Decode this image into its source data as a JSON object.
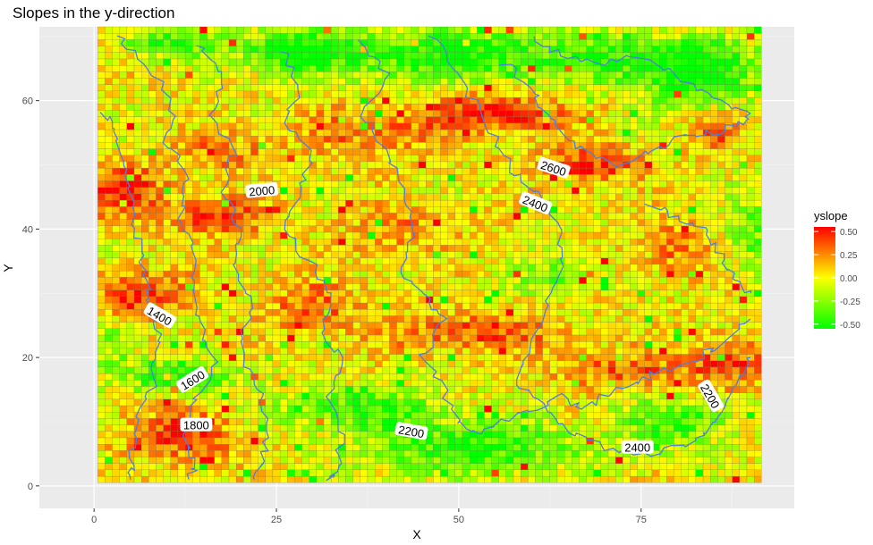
{
  "chart_data": {
    "type": "heatmap",
    "title": "Slopes in the y-direction",
    "xlabel": "X",
    "ylabel": "Y",
    "xlim": [
      -7.5,
      96
    ],
    "ylim": [
      -3.5,
      71.5
    ],
    "x_ticks": [
      0,
      25,
      50,
      75
    ],
    "x_tick_labels": [
      "0",
      "25",
      "50",
      "75"
    ],
    "y_ticks": [
      0,
      20,
      40,
      60
    ],
    "y_tick_labels": [
      "0",
      "20",
      "40",
      "60"
    ],
    "grid": true,
    "grid_extent": {
      "x": [
        1,
        91
      ],
      "y": [
        1,
        71
      ]
    },
    "legend": {
      "title": "yslope",
      "position": "right",
      "range": [
        -0.55,
        0.55
      ],
      "breaks": [
        0.5,
        0.25,
        0.0,
        -0.25,
        -0.5
      ],
      "break_labels": [
        "0.50",
        "0.25",
        "0.00",
        "-0.25",
        "-0.50"
      ],
      "colors": [
        "#00ff00",
        "#ffff00",
        "#ff0000"
      ]
    },
    "contour_color": "#4c7fe0",
    "contour_labels": [
      {
        "text": "2000",
        "x": 23,
        "y": 46,
        "angle": -5
      },
      {
        "text": "2600",
        "x": 63,
        "y": 49.5,
        "angle": 18
      },
      {
        "text": "2400",
        "x": 60.5,
        "y": 44,
        "angle": 22
      },
      {
        "text": "1400",
        "x": 9,
        "y": 26.5,
        "angle": 30
      },
      {
        "text": "1600",
        "x": 13.5,
        "y": 16.5,
        "angle": -32
      },
      {
        "text": "1800",
        "x": 14,
        "y": 9.5,
        "angle": 0
      },
      {
        "text": "2200",
        "x": 43.5,
        "y": 8.5,
        "angle": 10
      },
      {
        "text": "2400",
        "x": 74.5,
        "y": 6,
        "angle": 0
      },
      {
        "text": "2200",
        "x": 84.5,
        "y": 14,
        "angle": 60
      }
    ],
    "regions": [
      {
        "v": 0.52,
        "x": 4,
        "y": 46,
        "rx": 6,
        "ry": 4
      },
      {
        "v": 0.5,
        "x": 17,
        "y": 42,
        "rx": 6,
        "ry": 3
      },
      {
        "v": 0.5,
        "x": 6,
        "y": 30,
        "rx": 6,
        "ry": 3.5
      },
      {
        "v": 0.45,
        "x": 12,
        "y": 8,
        "rx": 8,
        "ry": 4
      },
      {
        "v": 0.5,
        "x": 55,
        "y": 58,
        "rx": 10,
        "ry": 3
      },
      {
        "v": 0.45,
        "x": 68,
        "y": 50,
        "rx": 7,
        "ry": 3
      },
      {
        "v": 0.45,
        "x": 87,
        "y": 19,
        "rx": 5,
        "ry": 4
      },
      {
        "v": 0.4,
        "x": 52,
        "y": 24,
        "rx": 12,
        "ry": 3
      },
      {
        "v": 0.35,
        "x": 30,
        "y": 28,
        "rx": 6,
        "ry": 4
      },
      {
        "v": 0.35,
        "x": 72,
        "y": 18,
        "rx": 10,
        "ry": 3
      },
      {
        "v": 0.3,
        "x": 38,
        "y": 55,
        "rx": 10,
        "ry": 4
      },
      {
        "v": 0.3,
        "x": 18,
        "y": 52,
        "rx": 6,
        "ry": 3
      },
      {
        "v": 0.3,
        "x": 80,
        "y": 37,
        "rx": 5,
        "ry": 4
      },
      {
        "v": 0.3,
        "x": 85,
        "y": 55,
        "rx": 4,
        "ry": 3
      },
      {
        "v": 0.25,
        "x": 42,
        "y": 40,
        "rx": 8,
        "ry": 4
      },
      {
        "v": -0.55,
        "x": 50,
        "y": 67,
        "rx": 20,
        "ry": 4
      },
      {
        "v": -0.5,
        "x": 80,
        "y": 66,
        "rx": 12,
        "ry": 4
      },
      {
        "v": -0.5,
        "x": 27,
        "y": 68,
        "rx": 8,
        "ry": 3
      },
      {
        "v": -0.5,
        "x": 10,
        "y": 69,
        "rx": 6,
        "ry": 2
      },
      {
        "v": -0.5,
        "x": 52,
        "y": 6,
        "rx": 16,
        "ry": 4
      },
      {
        "v": -0.45,
        "x": 36,
        "y": 12,
        "rx": 12,
        "ry": 3
      },
      {
        "v": -0.5,
        "x": 12,
        "y": 17,
        "rx": 8,
        "ry": 2.5
      },
      {
        "v": -0.4,
        "x": 80,
        "y": 10,
        "rx": 8,
        "ry": 4
      },
      {
        "v": -0.35,
        "x": 83,
        "y": 62,
        "rx": 7,
        "ry": 4
      },
      {
        "v": -0.35,
        "x": 90,
        "y": 40,
        "rx": 3,
        "ry": 6
      },
      {
        "v": -0.3,
        "x": 3,
        "y": 22,
        "rx": 3,
        "ry": 4
      },
      {
        "v": -0.3,
        "x": 63,
        "y": 33,
        "rx": 6,
        "ry": 3
      }
    ],
    "contours": [
      {
        "level": 1400,
        "points": [
          [
            1,
            58
          ],
          [
            3,
            55
          ],
          [
            4,
            50
          ],
          [
            5,
            44
          ],
          [
            6,
            38
          ],
          [
            7,
            32
          ],
          [
            8,
            27
          ],
          [
            9,
            22
          ],
          [
            8,
            16
          ],
          [
            6,
            10
          ],
          [
            5,
            4
          ],
          [
            5,
            1
          ]
        ]
      },
      {
        "level": 1600,
        "points": [
          [
            3,
            70
          ],
          [
            7,
            66
          ],
          [
            11,
            60
          ],
          [
            10,
            54
          ],
          [
            13,
            48
          ],
          [
            12,
            42
          ],
          [
            14,
            36
          ],
          [
            13,
            30
          ],
          [
            15,
            24
          ],
          [
            17,
            19
          ],
          [
            14,
            14
          ],
          [
            12,
            8
          ],
          [
            14,
            3
          ],
          [
            13,
            1
          ]
        ]
      },
      {
        "level": 1800,
        "points": [
          [
            14,
            69
          ],
          [
            18,
            64
          ],
          [
            16,
            58
          ],
          [
            19,
            52
          ],
          [
            18,
            46
          ],
          [
            20,
            40
          ],
          [
            19,
            34
          ],
          [
            22,
            28
          ],
          [
            20,
            22
          ],
          [
            22,
            16
          ],
          [
            24,
            10
          ],
          [
            23,
            4
          ],
          [
            22,
            1
          ]
        ]
      },
      {
        "level": 2000,
        "points": [
          [
            26,
            68
          ],
          [
            28,
            62
          ],
          [
            26,
            56
          ],
          [
            30,
            52
          ],
          [
            28,
            46
          ],
          [
            26,
            40
          ],
          [
            30,
            34
          ],
          [
            33,
            29
          ],
          [
            31,
            24
          ],
          [
            34,
            20
          ],
          [
            32,
            14
          ],
          [
            34,
            8
          ],
          [
            33,
            2
          ],
          [
            32,
            1
          ]
        ]
      },
      {
        "level": 2200,
        "points": [
          [
            36,
            69
          ],
          [
            40,
            64
          ],
          [
            37,
            58
          ],
          [
            40,
            52
          ],
          [
            42,
            46
          ],
          [
            44,
            40
          ],
          [
            42,
            34
          ],
          [
            45,
            30
          ],
          [
            48,
            26
          ],
          [
            45,
            20
          ],
          [
            48,
            15
          ],
          [
            50,
            10
          ],
          [
            53,
            8
          ],
          [
            56,
            10
          ],
          [
            60,
            12
          ],
          [
            64,
            14
          ],
          [
            67,
            12
          ],
          [
            70,
            14
          ],
          [
            74,
            16
          ],
          [
            78,
            18
          ],
          [
            83,
            20
          ],
          [
            86,
            22
          ],
          [
            90,
            26
          ]
        ]
      },
      {
        "level": 2400,
        "points": [
          [
            46,
            70
          ],
          [
            50,
            64
          ],
          [
            53,
            58
          ],
          [
            56,
            52
          ],
          [
            58,
            48
          ],
          [
            62,
            44
          ],
          [
            64,
            40
          ],
          [
            64,
            34
          ],
          [
            62,
            28
          ],
          [
            60,
            22
          ],
          [
            58,
            16
          ],
          [
            62,
            12
          ],
          [
            66,
            8
          ],
          [
            70,
            6
          ],
          [
            75,
            5
          ],
          [
            80,
            6
          ],
          [
            84,
            8
          ],
          [
            86,
            12
          ],
          [
            88,
            16
          ],
          [
            90,
            20
          ]
        ]
      },
      {
        "level": 2600,
        "points": [
          [
            56,
            66
          ],
          [
            60,
            62
          ],
          [
            62,
            58
          ],
          [
            65,
            54
          ],
          [
            68,
            52
          ],
          [
            72,
            50
          ],
          [
            76,
            52
          ],
          [
            80,
            54
          ],
          [
            84,
            55
          ],
          [
            88,
            56
          ],
          [
            90,
            58
          ]
        ]
      },
      {
        "level": 2600,
        "points": [
          [
            60,
            70
          ],
          [
            64,
            67
          ],
          [
            70,
            66
          ],
          [
            75,
            67
          ],
          [
            80,
            64
          ],
          [
            85,
            60
          ],
          [
            90,
            58
          ]
        ]
      },
      {
        "level": 2400,
        "points": [
          [
            76,
            44
          ],
          [
            80,
            42
          ],
          [
            84,
            40
          ],
          [
            86,
            36
          ],
          [
            88,
            32
          ],
          [
            90,
            30
          ]
        ]
      }
    ]
  }
}
